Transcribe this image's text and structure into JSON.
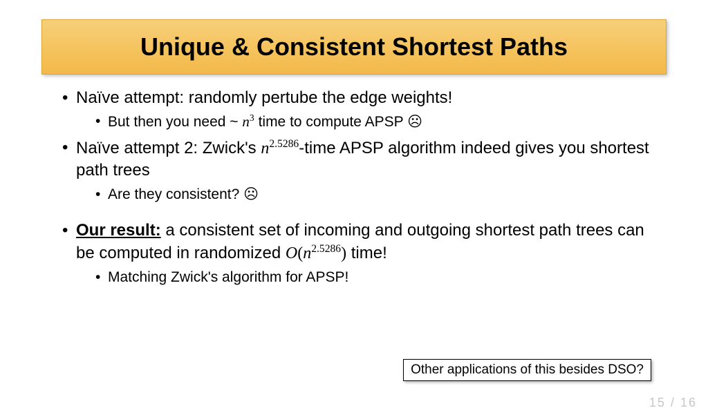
{
  "title": "Unique & Consistent Shortest Paths",
  "bullets": {
    "b1": "Naïve attempt: randomly pertube the edge weights!",
    "b1a_pre": "But then you need ~ ",
    "b1a_n": "n",
    "b1a_exp": "3",
    "b1a_post": " time to compute APSP ☹",
    "b2_pre": "Naïve attempt 2: Zwick's ",
    "b2_n": "n",
    "b2_exp": "2.5286",
    "b2_post": "-time APSP algorithm indeed gives you shortest path trees",
    "b2a": "Are they consistent? ☹",
    "b3_label": "Our result:",
    "b3_pre": " a consistent set of incoming and outgoing shortest path trees can be computed in randomized ",
    "b3_O": "O",
    "b3_lp": "(",
    "b3_n": "n",
    "b3_exp": "2.5286",
    "b3_rp": ")",
    "b3_post": " time!",
    "b3a": "Matching Zwick's algorithm for APSP!"
  },
  "callout": "Other applications of this besides DSO?",
  "page": {
    "current": "15",
    "sep": " / ",
    "total": "16"
  }
}
